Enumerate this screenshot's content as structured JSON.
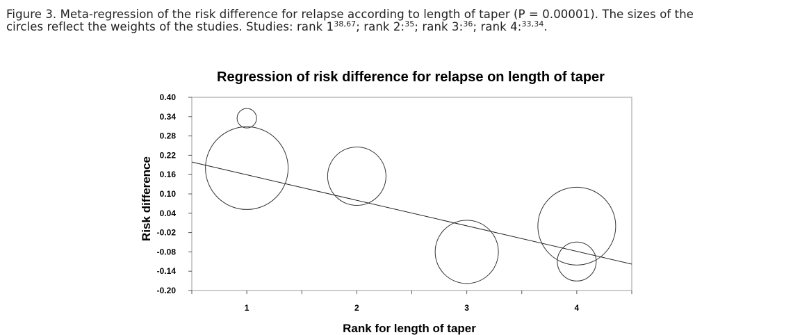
{
  "caption": {
    "line1": "Figure 3. Meta-regression of the risk difference for relapse according to length of taper (P = 0.00001). The sizes of the",
    "line2_a": "circles reflect the weights of the studies. Studies: rank 1",
    "ref_rank1": "38,67",
    "line2_b": "; rank 2:",
    "ref_rank2": "35",
    "line2_c": "; rank 3:",
    "ref_rank3": "36",
    "line2_d": "; rank 4:",
    "ref_rank4": "33,34",
    "line2_e": "."
  },
  "chart_data": {
    "type": "scatter",
    "title": "Regression of risk difference for relapse on length of taper",
    "xlabel": "Rank for length of taper",
    "ylabel": "Risk difference",
    "xlim": [
      0.5,
      4.5
    ],
    "ylim": [
      -0.2,
      0.4
    ],
    "y_ticks": [
      "0.40",
      "0.34",
      "0.28",
      "0.22",
      "0.16",
      "0.10",
      "0.04",
      "-0.02",
      "-0.08",
      "-0.14",
      "-0.20"
    ],
    "x_ticks": [
      "1",
      "2",
      "3",
      "4"
    ],
    "grid": false,
    "points": [
      {
        "x": 1,
        "y": 0.335,
        "weight": 0.2
      },
      {
        "x": 1,
        "y": 0.18,
        "weight": 0.85
      },
      {
        "x": 2,
        "y": 0.155,
        "weight": 0.6
      },
      {
        "x": 3,
        "y": -0.08,
        "weight": 0.65
      },
      {
        "x": 4,
        "y": 0.0,
        "weight": 0.8
      },
      {
        "x": 4,
        "y": -0.11,
        "weight": 0.4
      }
    ],
    "regression_line": {
      "x": [
        0.5,
        4.5
      ],
      "y": [
        0.199,
        -0.118
      ]
    }
  }
}
